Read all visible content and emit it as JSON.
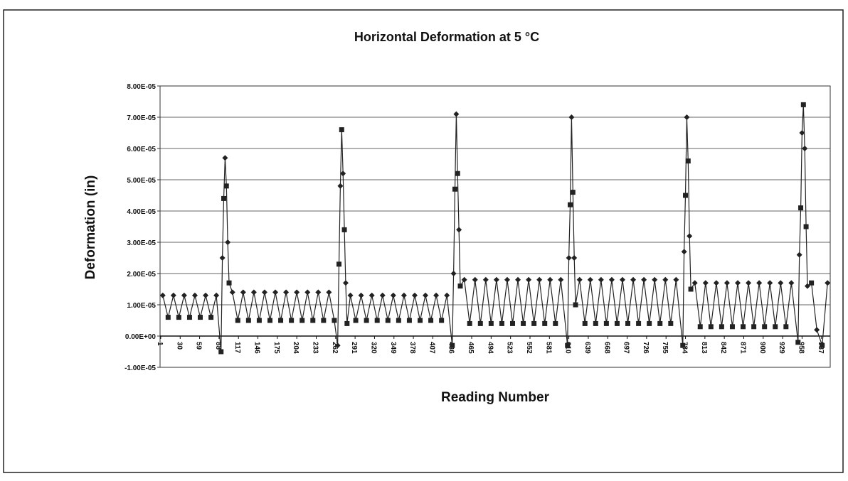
{
  "chart_data": {
    "type": "line",
    "title": "Horizontal Deformation at 5 °C",
    "x_label": "Reading Number",
    "y_label": "Deformation (in)",
    "xlim": [
      0,
      1000
    ],
    "xticks": [
      1,
      30,
      59,
      88,
      117,
      146,
      175,
      204,
      233,
      262,
      291,
      320,
      349,
      378,
      407,
      436,
      465,
      494,
      523,
      552,
      581,
      610,
      639,
      668,
      697,
      726,
      755,
      784,
      813,
      842,
      871,
      900,
      929,
      958,
      987
    ],
    "ylim": [
      -1e-05,
      8e-05
    ],
    "yticks": [
      {
        "value": -1e-05,
        "label": "-1.00E-05"
      },
      {
        "value": 0,
        "label": "0.00E+00"
      },
      {
        "value": 1e-05,
        "label": "1.00E-05"
      },
      {
        "value": 2e-05,
        "label": "2.00E-05"
      },
      {
        "value": 3e-05,
        "label": "3.00E-05"
      },
      {
        "value": 4e-05,
        "label": "4.00E-05"
      },
      {
        "value": 5e-05,
        "label": "5.00E-05"
      },
      {
        "value": 6e-05,
        "label": "6.00E-05"
      },
      {
        "value": 7e-05,
        "label": "7.00E-05"
      },
      {
        "value": 8e-05,
        "label": "8.00E-05"
      }
    ],
    "grid": true,
    "color": "#222222",
    "x": [
      4,
      12,
      20,
      28,
      36,
      44,
      52,
      60,
      68,
      76,
      84,
      91,
      93,
      95,
      97,
      99,
      101,
      103,
      108,
      116,
      124,
      132,
      140,
      148,
      156,
      164,
      172,
      180,
      188,
      196,
      204,
      212,
      220,
      228,
      236,
      244,
      252,
      260,
      265,
      267,
      269,
      271,
      273,
      275,
      277,
      279,
      284,
      292,
      300,
      308,
      316,
      324,
      332,
      340,
      348,
      356,
      364,
      372,
      380,
      388,
      396,
      404,
      412,
      420,
      428,
      436,
      438,
      440,
      442,
      444,
      446,
      448,
      454,
      462,
      470,
      478,
      486,
      494,
      502,
      510,
      518,
      526,
      534,
      542,
      550,
      558,
      566,
      574,
      582,
      590,
      598,
      608,
      610,
      612,
      614,
      616,
      618,
      620,
      626,
      634,
      642,
      650,
      658,
      666,
      674,
      682,
      690,
      698,
      706,
      714,
      722,
      730,
      738,
      746,
      754,
      762,
      770,
      780,
      782,
      784,
      786,
      788,
      790,
      792,
      798,
      806,
      814,
      822,
      830,
      838,
      846,
      854,
      862,
      870,
      878,
      886,
      894,
      902,
      910,
      918,
      926,
      934,
      942,
      952,
      954,
      956,
      958,
      960,
      962,
      964,
      966,
      972,
      980,
      988,
      996
    ],
    "values": [
      1.3e-05,
      6e-06,
      1.3e-05,
      6e-06,
      1.3e-05,
      6e-06,
      1.3e-05,
      6e-06,
      1.3e-05,
      6e-06,
      1.3e-05,
      -5e-06,
      2.5e-05,
      4.4e-05,
      5.7e-05,
      4.8e-05,
      3e-05,
      1.7e-05,
      1.4e-05,
      5e-06,
      1.4e-05,
      5e-06,
      1.4e-05,
      5e-06,
      1.4e-05,
      5e-06,
      1.4e-05,
      5e-06,
      1.4e-05,
      5e-06,
      1.4e-05,
      5e-06,
      1.4e-05,
      5e-06,
      1.4e-05,
      5e-06,
      1.4e-05,
      5e-06,
      -3e-06,
      2.3e-05,
      4.8e-05,
      6.6e-05,
      5.2e-05,
      3.4e-05,
      1.7e-05,
      4e-06,
      1.3e-05,
      5e-06,
      1.3e-05,
      5e-06,
      1.3e-05,
      5e-06,
      1.3e-05,
      5e-06,
      1.3e-05,
      5e-06,
      1.3e-05,
      5e-06,
      1.3e-05,
      5e-06,
      1.3e-05,
      5e-06,
      1.3e-05,
      5e-06,
      1.3e-05,
      -3e-06,
      2e-05,
      4.7e-05,
      7.1e-05,
      5.2e-05,
      3.4e-05,
      1.6e-05,
      1.8e-05,
      4e-06,
      1.8e-05,
      4e-06,
      1.8e-05,
      4e-06,
      1.8e-05,
      4e-06,
      1.8e-05,
      4e-06,
      1.8e-05,
      4e-06,
      1.8e-05,
      4e-06,
      1.8e-05,
      4e-06,
      1.8e-05,
      4e-06,
      1.8e-05,
      -3e-06,
      2.5e-05,
      4.2e-05,
      7e-05,
      4.6e-05,
      2.5e-05,
      1e-05,
      1.8e-05,
      4e-06,
      1.8e-05,
      4e-06,
      1.8e-05,
      4e-06,
      1.8e-05,
      4e-06,
      1.8e-05,
      4e-06,
      1.8e-05,
      4e-06,
      1.8e-05,
      4e-06,
      1.8e-05,
      4e-06,
      1.8e-05,
      4e-06,
      1.8e-05,
      -3e-06,
      2.7e-05,
      4.5e-05,
      7e-05,
      5.6e-05,
      3.2e-05,
      1.5e-05,
      1.7e-05,
      3e-06,
      1.7e-05,
      3e-06,
      1.7e-05,
      3e-06,
      1.7e-05,
      3e-06,
      1.7e-05,
      3e-06,
      1.7e-05,
      3e-06,
      1.7e-05,
      3e-06,
      1.7e-05,
      3e-06,
      1.7e-05,
      3e-06,
      1.7e-05,
      -2e-06,
      2.6e-05,
      4.1e-05,
      6.5e-05,
      7.4e-05,
      6e-05,
      3.5e-05,
      1.6e-05,
      1.7e-05,
      2e-06,
      -3e-06,
      1.7e-05
    ]
  }
}
